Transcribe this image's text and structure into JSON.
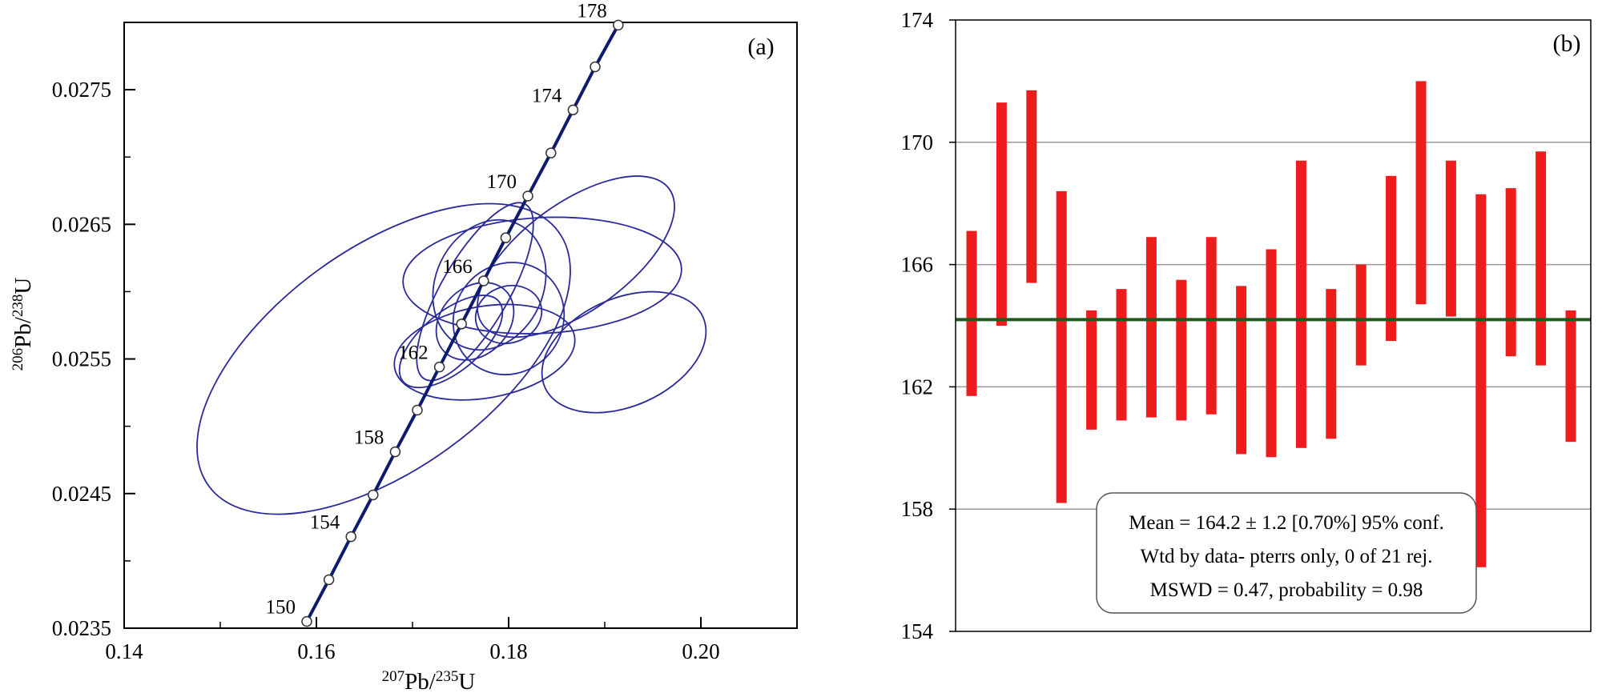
{
  "chart_data": [
    {
      "type": "scatter",
      "panel_label": "(a)",
      "xlabel": {
        "sup": "207",
        "base": "Pb/",
        "sup2": "235",
        "base2": "U"
      },
      "ylabel": {
        "sup": "206",
        "base": "Pb/",
        "sup2": "238",
        "base2": "U"
      },
      "xlim": [
        0.14,
        0.21
      ],
      "ylim": [
        0.0235,
        0.028
      ],
      "x_ticks": [
        "0.14",
        "0.16",
        "0.18",
        "0.20"
      ],
      "x_tick_values": [
        0.14,
        0.16,
        0.18,
        0.2
      ],
      "y_ticks": [
        "0.0235",
        "0.0245",
        "0.0255",
        "0.0265",
        "0.0275"
      ],
      "y_tick_values": [
        0.0235,
        0.0245,
        0.0255,
        0.0265,
        0.0275
      ],
      "concordia": {
        "points": [
          {
            "age": 150,
            "x": 0.159,
            "y": 0.02355,
            "label": "150"
          },
          {
            "age": 152,
            "x": 0.1613,
            "y": 0.02386
          },
          {
            "age": 154,
            "x": 0.1636,
            "y": 0.02418,
            "label": "154"
          },
          {
            "age": 156,
            "x": 0.1659,
            "y": 0.02449
          },
          {
            "age": 158,
            "x": 0.1682,
            "y": 0.02481,
            "label": "158"
          },
          {
            "age": 160,
            "x": 0.1705,
            "y": 0.02512
          },
          {
            "age": 162,
            "x": 0.1728,
            "y": 0.02544,
            "label": "162"
          },
          {
            "age": 164,
            "x": 0.1751,
            "y": 0.02576
          },
          {
            "age": 166,
            "x": 0.1774,
            "y": 0.02608,
            "label": "166"
          },
          {
            "age": 168,
            "x": 0.1797,
            "y": 0.0264
          },
          {
            "age": 170,
            "x": 0.182,
            "y": 0.02671,
            "label": "170"
          },
          {
            "age": 172,
            "x": 0.1844,
            "y": 0.02703
          },
          {
            "age": 174,
            "x": 0.1867,
            "y": 0.02735,
            "label": "174"
          },
          {
            "age": 176,
            "x": 0.189,
            "y": 0.02767
          },
          {
            "age": 178,
            "x": 0.1914,
            "y": 0.02798,
            "label": "178"
          }
        ]
      },
      "ellipses": [
        {
          "cx": 0.167,
          "cy": 0.0255,
          "rx": 0.0225,
          "ry": 0.00082,
          "rot": -36
        },
        {
          "cx": 0.1835,
          "cy": 0.02612,
          "rx": 0.0145,
          "ry": 0.00043,
          "rot": -3
        },
        {
          "cx": 0.187,
          "cy": 0.02626,
          "rx": 0.012,
          "ry": 0.0004,
          "rot": -36
        },
        {
          "cx": 0.192,
          "cy": 0.02555,
          "rx": 0.009,
          "ry": 0.0004,
          "rot": -24
        },
        {
          "cx": 0.1775,
          "cy": 0.02555,
          "rx": 0.0095,
          "ry": 0.00034,
          "rot": -10
        },
        {
          "cx": 0.1765,
          "cy": 0.026,
          "rx": 0.0105,
          "ry": 0.00025,
          "rot": -60
        },
        {
          "cx": 0.178,
          "cy": 0.02605,
          "rx": 0.007,
          "ry": 0.0004,
          "rot": -65
        },
        {
          "cx": 0.18,
          "cy": 0.0258,
          "rx": 0.006,
          "ry": 0.0004,
          "rot": -50
        },
        {
          "cx": 0.174,
          "cy": 0.02563,
          "rx": 0.0065,
          "ry": 0.00022,
          "rot": -40
        },
        {
          "cx": 0.18,
          "cy": 0.02583,
          "rx": 0.0035,
          "ry": 0.00021,
          "rot": -20
        },
        {
          "cx": 0.1765,
          "cy": 0.02578,
          "rx": 0.0045,
          "ry": 0.00025,
          "rot": -45
        }
      ],
      "colors": {
        "concordia": "#0d1b6e",
        "ellipse": "#2a2a9a",
        "node_fill": "#ffffff"
      }
    },
    {
      "type": "bar",
      "subtype": "error_bars",
      "panel_label": "(b)",
      "ylim": [
        154,
        174
      ],
      "y_ticks": [
        "154",
        "158",
        "162",
        "166",
        "170",
        "174"
      ],
      "y_tick_values": [
        154,
        158,
        162,
        166,
        170,
        174
      ],
      "gridlines": [
        158,
        162,
        166,
        170
      ],
      "mean": 164.2,
      "bars": [
        {
          "low": 161.7,
          "high": 167.1
        },
        {
          "low": 164.0,
          "high": 171.3
        },
        {
          "low": 165.4,
          "high": 171.7
        },
        {
          "low": 158.2,
          "high": 168.4
        },
        {
          "low": 160.6,
          "high": 164.5
        },
        {
          "low": 160.9,
          "high": 165.2
        },
        {
          "low": 161.0,
          "high": 166.9
        },
        {
          "low": 160.9,
          "high": 165.5
        },
        {
          "low": 161.1,
          "high": 166.9
        },
        {
          "low": 159.8,
          "high": 165.3
        },
        {
          "low": 159.7,
          "high": 166.5
        },
        {
          "low": 160.0,
          "high": 169.4
        },
        {
          "low": 160.3,
          "high": 165.2
        },
        {
          "low": 162.7,
          "high": 166.0
        },
        {
          "low": 163.5,
          "high": 168.9
        },
        {
          "low": 164.7,
          "high": 172.0
        },
        {
          "low": 164.3,
          "high": 169.4
        },
        {
          "low": 156.1,
          "high": 168.3
        },
        {
          "low": 163.0,
          "high": 168.5
        },
        {
          "low": 162.7,
          "high": 169.7
        },
        {
          "low": 160.2,
          "high": 164.5
        }
      ],
      "stats": {
        "line1": "Mean = 164.2 ± 1.2 [0.70%] 95% conf.",
        "line2": "Wtd by data- pterrs only, 0 of 21 rej.",
        "line3": "MSWD = 0.47, probability = 0.98"
      },
      "colors": {
        "bar": "#ee1c1c",
        "mean_line": "#1e5a1e",
        "grid": "#999999"
      }
    }
  ]
}
